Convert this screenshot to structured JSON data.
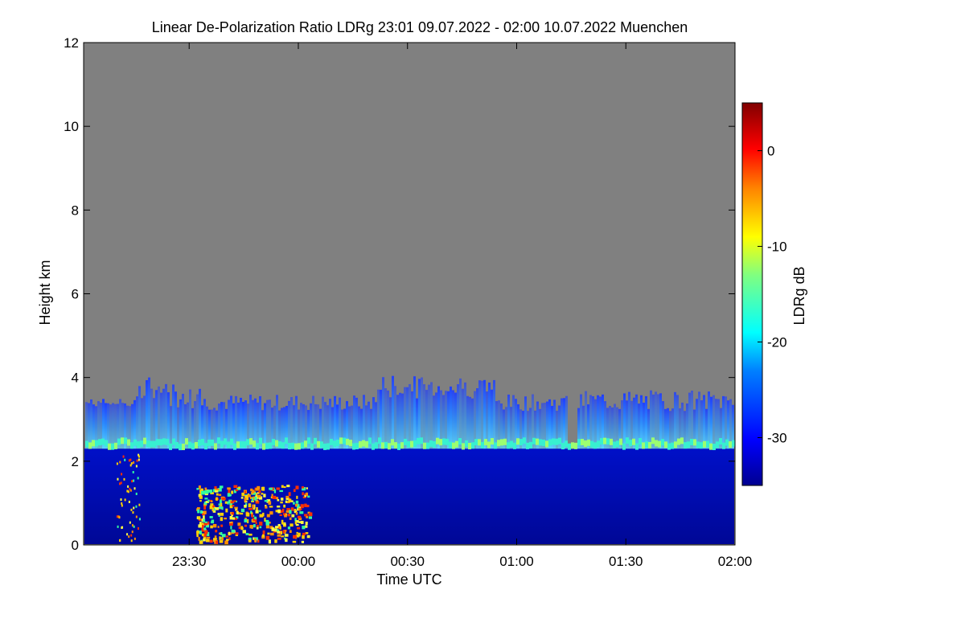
{
  "chart_data": {
    "type": "heatmap",
    "title": "Linear De-Polarization Ratio LDRg   23:01 09.07.2022 - 02:00 10.07.2022 Muenchen",
    "xlabel": "Time UTC",
    "ylabel": "Height km",
    "colorbar_label": "LDRg dB",
    "xlim": [
      "23:01",
      "02:00"
    ],
    "ylim": [
      0,
      12
    ],
    "x_ticks": [
      "23:30",
      "00:00",
      "00:30",
      "01:00",
      "01:30",
      "02:00"
    ],
    "y_ticks": [
      "0",
      "2",
      "4",
      "6",
      "8",
      "10",
      "12"
    ],
    "colorbar_range": [
      -35,
      5
    ],
    "colorbar_ticks": [
      "0",
      "-10",
      "-20",
      "-30"
    ],
    "colormap": "jet",
    "no_signal_color": "#808080",
    "features": {
      "boundary_layer_top_km": 2.3,
      "cloud_top_km_range": [
        3.2,
        4.0
      ],
      "max_signal_height_km": 4.1
    }
  }
}
